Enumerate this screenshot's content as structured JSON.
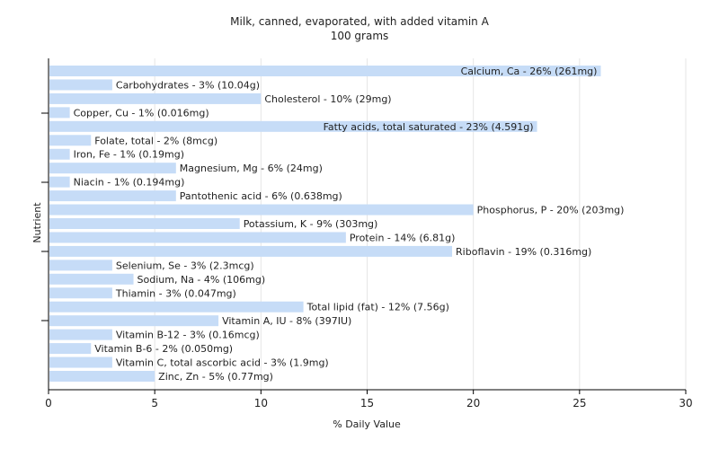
{
  "chart_data": {
    "type": "bar",
    "orientation": "horizontal",
    "title": "Milk, canned, evaporated, with added vitamin A",
    "subtitle": "100 grams",
    "xlabel": "% Daily Value",
    "ylabel": "Nutrient",
    "xlim": [
      0,
      30
    ],
    "xticks": [
      "0",
      "5",
      "10",
      "15",
      "20",
      "25",
      "30"
    ],
    "grid": true,
    "bar_color": "#c6dcf7",
    "categories": [
      "Calcium, Ca",
      "Carbohydrates",
      "Cholesterol",
      "Copper, Cu",
      "Fatty acids, total saturated",
      "Folate, total",
      "Iron, Fe",
      "Magnesium, Mg",
      "Niacin",
      "Pantothenic acid",
      "Phosphorus, P",
      "Potassium, K",
      "Protein",
      "Riboflavin",
      "Selenium, Se",
      "Sodium, Na",
      "Thiamin",
      "Total lipid (fat)",
      "Vitamin A, IU",
      "Vitamin B-12",
      "Vitamin B-6",
      "Vitamin C, total ascorbic acid",
      "Zinc, Zn"
    ],
    "values": [
      26,
      3,
      10,
      1,
      23,
      2,
      1,
      6,
      1,
      6,
      20,
      9,
      14,
      19,
      3,
      4,
      3,
      12,
      8,
      3,
      2,
      3,
      5
    ],
    "labels": [
      "Calcium, Ca - 26% (261mg)",
      "Carbohydrates - 3% (10.04g)",
      "Cholesterol - 10% (29mg)",
      "Copper, Cu - 1% (0.016mg)",
      "Fatty acids, total saturated - 23% (4.591g)",
      "Folate, total - 2% (8mcg)",
      "Iron, Fe - 1% (0.19mg)",
      "Magnesium, Mg - 6% (24mg)",
      "Niacin - 1% (0.194mg)",
      "Pantothenic acid - 6% (0.638mg)",
      "Phosphorus, P - 20% (203mg)",
      "Potassium, K - 9% (303mg)",
      "Protein - 14% (6.81g)",
      "Riboflavin - 19% (0.316mg)",
      "Selenium, Se - 3% (2.3mcg)",
      "Sodium, Na - 4% (106mg)",
      "Thiamin - 3% (0.047mg)",
      "Total lipid (fat) - 12% (7.56g)",
      "Vitamin A, IU - 8% (397IU)",
      "Vitamin B-12 - 3% (0.16mcg)",
      "Vitamin B-6 - 2% (0.050mg)",
      "Vitamin C, total ascorbic acid - 3% (1.9mg)",
      "Zinc, Zn - 5% (0.77mg)"
    ]
  }
}
